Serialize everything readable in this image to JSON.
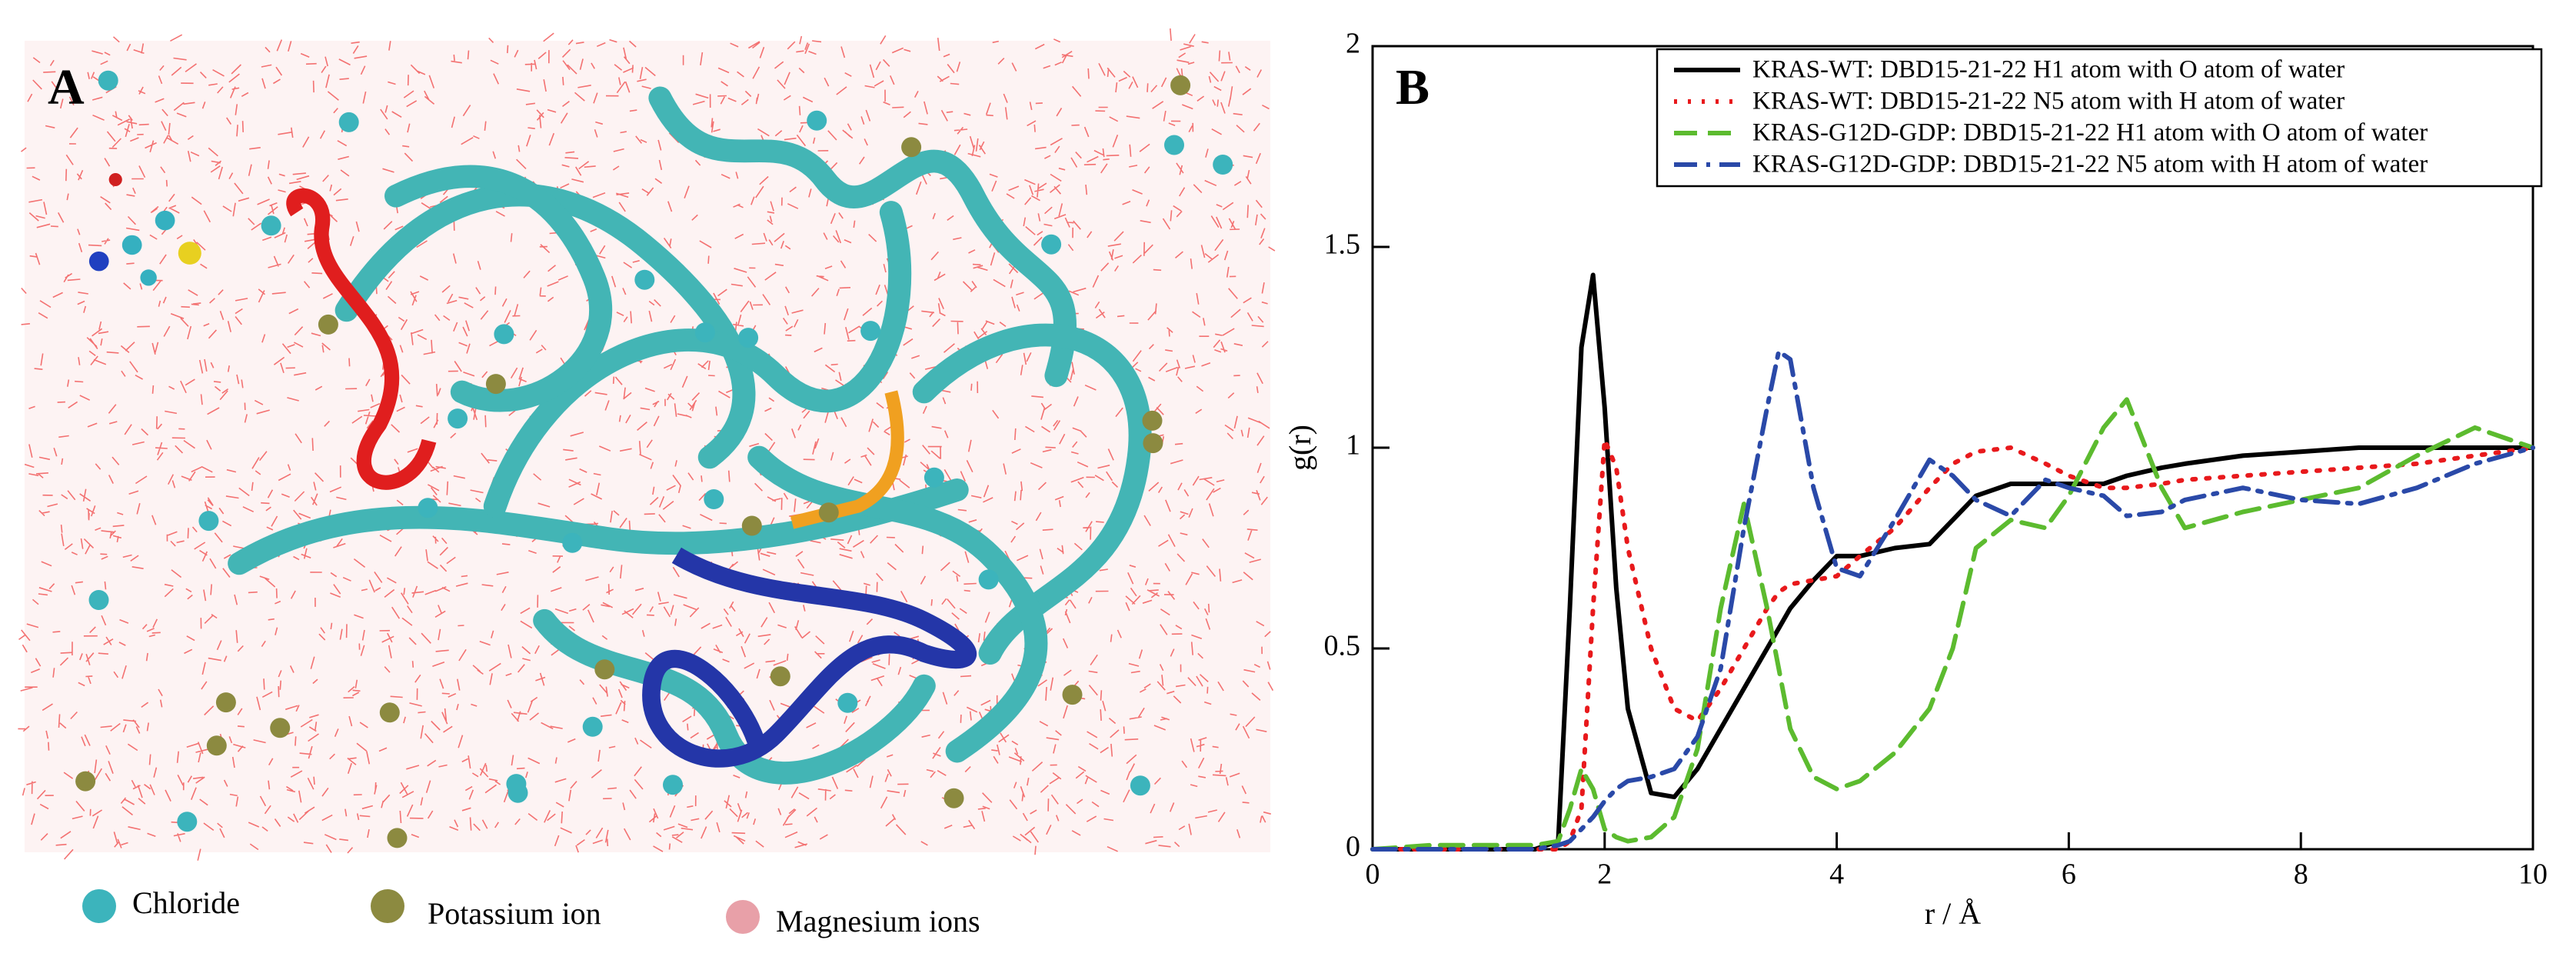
{
  "panel_a": {
    "label": "A",
    "legend": [
      "Chloride",
      "Potassium ion",
      "Magnesium ions"
    ]
  },
  "chart_data": {
    "type": "line",
    "panel_label": "B",
    "xlabel": "r / Å",
    "ylabel": "g(r)",
    "x": [
      0,
      0.5,
      1,
      1.4,
      1.6,
      1.7,
      1.8,
      1.9,
      2.0,
      2.1,
      2.2,
      2.4,
      2.6,
      2.8,
      3.0,
      3.2,
      3.4,
      3.5,
      3.6,
      3.8,
      4.0,
      4.2,
      4.5,
      4.8,
      5.0,
      5.2,
      5.5,
      5.8,
      6.0,
      6.3,
      6.5,
      6.8,
      7.0,
      7.5,
      8,
      8.5,
      9,
      9.5,
      10
    ],
    "series": [
      {
        "name": "KRAS-WT: DBD15-21-22 H1 atom with O atom of water",
        "color": "#000000",
        "style": "solid",
        "values": [
          0,
          0,
          0,
          0,
          0.02,
          0.6,
          1.25,
          1.43,
          1.1,
          0.65,
          0.35,
          0.14,
          0.13,
          0.2,
          0.3,
          0.4,
          0.5,
          0.55,
          0.6,
          0.67,
          0.73,
          0.73,
          0.75,
          0.76,
          0.82,
          0.88,
          0.91,
          0.91,
          0.91,
          0.91,
          0.93,
          0.95,
          0.96,
          0.98,
          0.99,
          1.0,
          1.0,
          1.0,
          1.0
        ]
      },
      {
        "name": "KRAS-WT: DBD15-21-22 N5 atom with H atom of water",
        "color": "#e8191c",
        "style": "dotted",
        "values": [
          0,
          0,
          0,
          0,
          0,
          0.02,
          0.1,
          0.6,
          1.02,
          0.95,
          0.75,
          0.5,
          0.35,
          0.32,
          0.4,
          0.5,
          0.6,
          0.64,
          0.66,
          0.67,
          0.68,
          0.73,
          0.8,
          0.9,
          0.96,
          0.99,
          1.0,
          0.96,
          0.93,
          0.9,
          0.9,
          0.91,
          0.92,
          0.93,
          0.94,
          0.95,
          0.96,
          0.98,
          1.0
        ]
      },
      {
        "name": "KRAS-G12D-GDP: DBD15-21-22 H1 atom with O atom of water",
        "color": "#5cbb2f",
        "style": "dashed",
        "values": [
          0,
          0.01,
          0.01,
          0.01,
          0.02,
          0.1,
          0.2,
          0.15,
          0.05,
          0.03,
          0.02,
          0.03,
          0.08,
          0.25,
          0.6,
          0.86,
          0.6,
          0.45,
          0.3,
          0.18,
          0.15,
          0.17,
          0.24,
          0.35,
          0.5,
          0.75,
          0.82,
          0.8,
          0.88,
          1.05,
          1.12,
          0.9,
          0.8,
          0.84,
          0.87,
          0.9,
          0.98,
          1.05,
          1.0
        ]
      },
      {
        "name": "KRAS-G12D-GDP: DBD15-21-22 N5 atom with H atom of water",
        "color": "#2a49a8",
        "style": "dashdot",
        "values": [
          0,
          0,
          0,
          0,
          0.01,
          0.02,
          0.05,
          0.08,
          0.12,
          0.15,
          0.17,
          0.18,
          0.2,
          0.28,
          0.45,
          0.8,
          1.1,
          1.24,
          1.22,
          0.9,
          0.7,
          0.68,
          0.82,
          0.97,
          0.93,
          0.87,
          0.83,
          0.92,
          0.9,
          0.88,
          0.83,
          0.84,
          0.87,
          0.9,
          0.87,
          0.86,
          0.9,
          0.96,
          1.0
        ]
      }
    ],
    "xlim": [
      0,
      10
    ],
    "ylim": [
      0,
      2
    ],
    "xticks": [
      0,
      2,
      4,
      6,
      8,
      10
    ],
    "yticks": [
      0,
      0.5,
      1,
      1.5,
      2
    ],
    "legend": "upper right"
  }
}
